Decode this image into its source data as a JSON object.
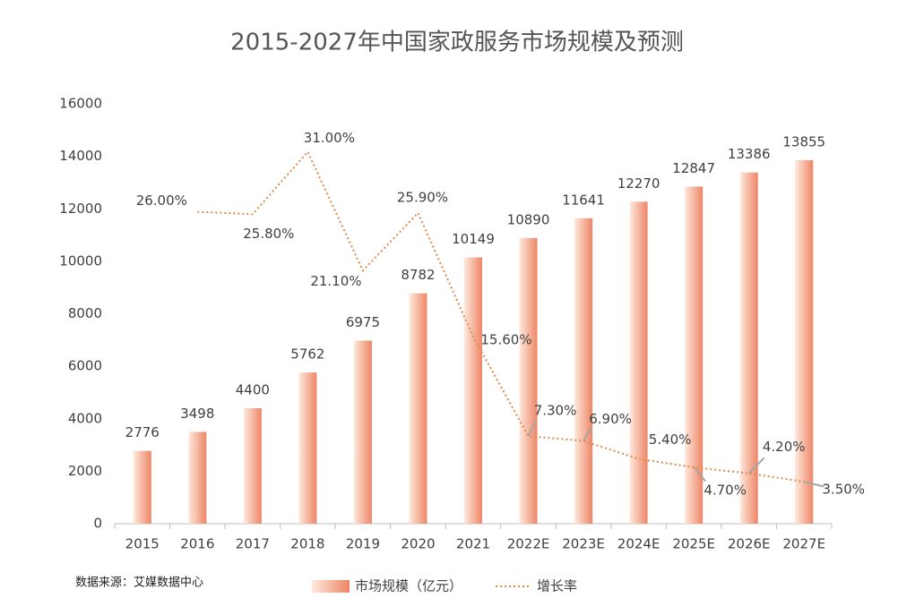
{
  "chart_data": {
    "type": "bar_line",
    "title": "2015-2027年中国家政服务市场规模及预测",
    "source": "数据来源：艾媒数据中心",
    "categories": [
      "2015",
      "2016",
      "2017",
      "2018",
      "2019",
      "2020",
      "2021",
      "2022E",
      "2023E",
      "2024E",
      "2025E",
      "2026E",
      "2027E"
    ],
    "series": [
      {
        "name": "市场规模（亿元）",
        "type": "bar",
        "color": "#ee8566",
        "values": [
          2776,
          3498,
          4400,
          5762,
          6975,
          8782,
          10149,
          10890,
          11641,
          12270,
          12847,
          13386,
          13855
        ]
      },
      {
        "name": "增长率",
        "type": "line",
        "axis": "y2",
        "color": "#e0894a",
        "values": [
          null,
          26,
          25.8,
          31,
          21.1,
          25.9,
          15.6,
          7.3,
          6.9,
          5.4,
          4.7,
          4.2,
          3.5
        ],
        "value_labels": [
          null,
          "26.00%",
          "25.80%",
          "31.00%",
          "21.10%",
          "25.90%",
          "15.60%",
          "7.30%",
          "6.90%",
          "5.40%",
          "4.70%",
          "4.20%",
          "3.50%"
        ]
      }
    ],
    "ylim": [
      0,
      16000
    ],
    "yticks": [
      0,
      2000,
      4000,
      6000,
      8000,
      10000,
      12000,
      14000,
      16000
    ],
    "y2lim": [
      0,
      35
    ],
    "legend": "bottom"
  }
}
